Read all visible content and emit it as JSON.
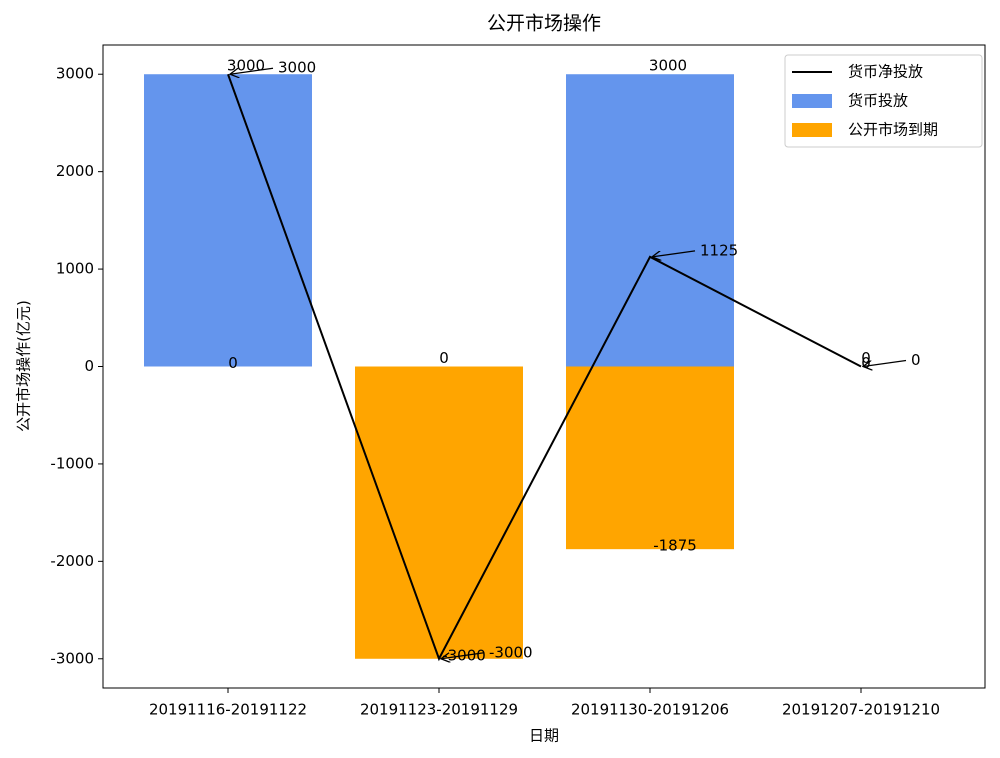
{
  "chart_data": {
    "type": "bar",
    "title": "公开市场操作",
    "x_label": "日期",
    "y_label": "公开市场操作(亿元)",
    "categories": [
      "20191116-20191122",
      "20191123-20191129",
      "20191130-20191206",
      "20191207-20191210"
    ],
    "series": [
      {
        "name": "货币净投放",
        "type": "line",
        "color": "#000000",
        "values": [
          3000,
          -3000,
          1125,
          0
        ]
      },
      {
        "name": "货币投放",
        "type": "bar",
        "color": "#6495ED",
        "values": [
          3000,
          0,
          3000,
          0
        ]
      },
      {
        "name": "公开市场到期",
        "type": "bar",
        "color": "#FFA500",
        "values": [
          0,
          -3000,
          -1875,
          0
        ]
      }
    ],
    "ylim": [
      -3300,
      3300
    ],
    "yticks": [
      -3000,
      -2000,
      -1000,
      0,
      1000,
      2000,
      3000
    ],
    "legend": "upper right"
  }
}
